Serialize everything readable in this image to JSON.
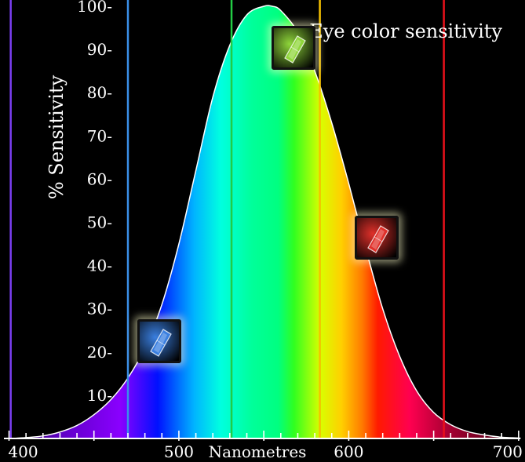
{
  "chart_data": {
    "type": "area",
    "title": "Eye color sensitivity",
    "xlabel": "Nanometres",
    "ylabel": "% Sensitivity",
    "xlim": [
      397,
      701
    ],
    "ylim": [
      0,
      100
    ],
    "x_ticks": [
      400,
      500,
      600,
      700
    ],
    "x_tick_labels": [
      "400",
      "500",
      "600",
      "700"
    ],
    "y_ticks": [
      10,
      20,
      30,
      40,
      50,
      60,
      70,
      80,
      90,
      100
    ],
    "y_tick_labels": [
      "10-",
      "20-",
      "30-",
      "40-",
      "50-",
      "60-",
      "70-",
      "80-",
      "90-",
      "100-"
    ],
    "curve": {
      "x": [
        410,
        420,
        430,
        440,
        450,
        460,
        470,
        480,
        490,
        500,
        510,
        520,
        530,
        540,
        550,
        555,
        560,
        570,
        580,
        590,
        600,
        610,
        620,
        630,
        640,
        650,
        660,
        670,
        680,
        690,
        700
      ],
      "y": [
        0.2,
        0.6,
        1.5,
        3.0,
        5.5,
        9.0,
        14.0,
        21.0,
        31.0,
        45.0,
        62.0,
        79.0,
        91.0,
        98.0,
        100.0,
        100.0,
        99.0,
        94.0,
        85.0,
        73.0,
        59.0,
        44.0,
        30.0,
        19.0,
        11.0,
        6.0,
        3.2,
        1.6,
        0.8,
        0.3,
        0.1
      ]
    },
    "color_lines": [
      {
        "name": "violet",
        "x": 401,
        "color": "#7b3ff2"
      },
      {
        "name": "blue",
        "x": 470,
        "color": "#3a8fe8"
      },
      {
        "name": "green",
        "x": 531,
        "color": "#22cc44"
      },
      {
        "name": "yellow",
        "x": 583,
        "color": "#f5c000"
      },
      {
        "name": "red",
        "x": 656,
        "color": "#e8101a"
      }
    ],
    "grid": false,
    "legend": "none"
  },
  "gems": [
    {
      "name": "blue-crystal-icon",
      "color": "#3a7fe0",
      "x": 487,
      "y": 23
    },
    {
      "name": "green-crystal-icon",
      "color": "#8fd63a",
      "x": 566,
      "y": 91
    },
    {
      "name": "red-crystal-icon",
      "color": "#e0302a",
      "x": 615,
      "y": 47
    }
  ]
}
